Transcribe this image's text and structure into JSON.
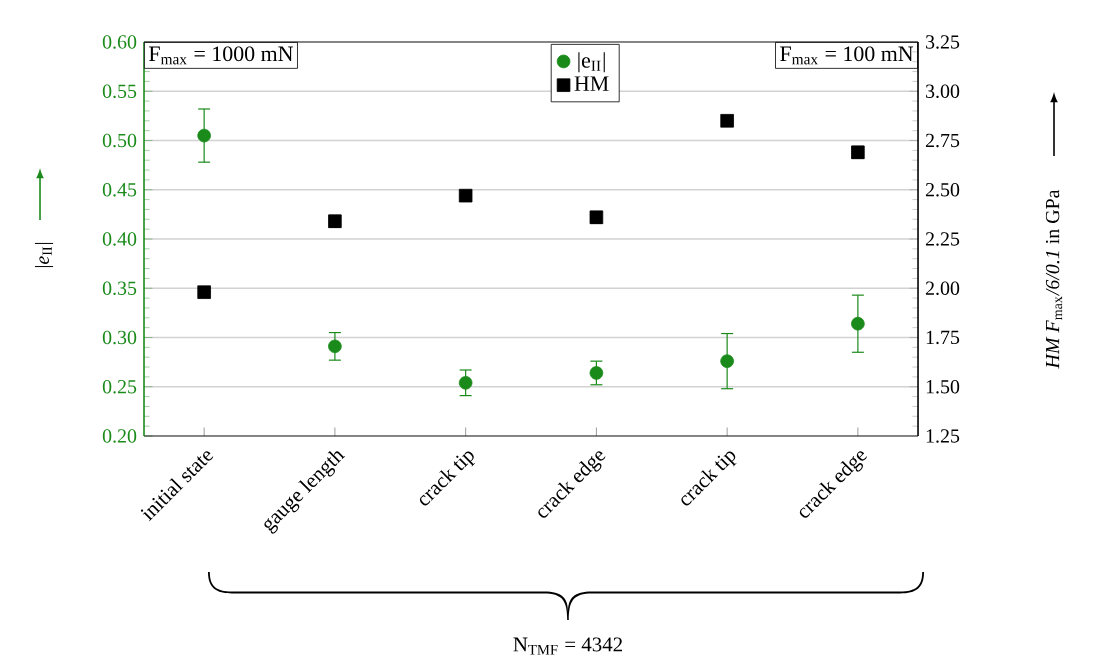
{
  "chart_data": {
    "type": "scatter",
    "categories": [
      "initial state",
      "gauge length",
      "crack tip",
      "crack edge",
      "crack tip",
      "crack edge"
    ],
    "series": [
      {
        "name": "|e$_{II}$|",
        "color": "#1a8a1a",
        "marker": "circle",
        "axis": "y",
        "values": [
          0.505,
          0.291,
          0.254,
          0.264,
          0.276,
          0.314
        ],
        "errors": [
          0.027,
          0.014,
          0.013,
          0.012,
          0.028,
          0.029
        ]
      },
      {
        "name": "HM",
        "color": "#000000",
        "marker": "square",
        "axis": "y2",
        "values": [
          1.98,
          2.34,
          2.47,
          2.36,
          2.85,
          2.69
        ],
        "errors": [
          null,
          0.03,
          null,
          0.03,
          null,
          0.03
        ]
      }
    ],
    "ylim": [
      0.2,
      0.6
    ],
    "yticks": [
      {
        "value": 0.2,
        "label": "0.20"
      },
      {
        "value": 0.25,
        "label": "0.25"
      },
      {
        "value": 0.3,
        "label": "0.30"
      },
      {
        "value": 0.35,
        "label": "0.35"
      },
      {
        "value": 0.4,
        "label": "0.40"
      },
      {
        "value": 0.45,
        "label": "0.45"
      },
      {
        "value": 0.5,
        "label": "0.50"
      },
      {
        "value": 0.55,
        "label": "0.55"
      },
      {
        "value": 0.6,
        "label": "0.60"
      }
    ],
    "y2lim": [
      1.25,
      3.25
    ],
    "y2ticks": [
      {
        "value": 1.25,
        "label": "1.25"
      },
      {
        "value": 1.5,
        "label": "1.50"
      },
      {
        "value": 1.75,
        "label": "1.75"
      },
      {
        "value": 2.0,
        "label": "2.00"
      },
      {
        "value": 2.25,
        "label": "2.25"
      },
      {
        "value": 2.5,
        "label": "2.50"
      },
      {
        "value": 2.75,
        "label": "2.75"
      },
      {
        "value": 3.0,
        "label": "3.00"
      },
      {
        "value": 3.25,
        "label": "3.25"
      }
    ],
    "ylabel": "|*e*$_{II}$|",
    "y2label": "*HM F*$_{max}$*/6/0.1* in GPa",
    "annotations": [
      "F$_{max}$ = 1000 mN",
      "F$_{max}$ = 100 mN",
      "N$_{TMF}$ = 4342"
    ],
    "grid": "y",
    "legend": "top"
  }
}
